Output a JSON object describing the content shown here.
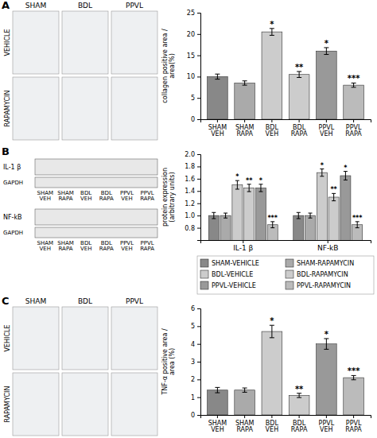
{
  "chart_data": [
    {
      "type": "bar",
      "title": "A",
      "ylabel": "collagen positive area /\narea(%)",
      "categories": [
        "SHAM\nVEH",
        "SHAM\nRAPA",
        "BDL\nVEH",
        "BDL\nRAPA",
        "PPVL\nVEH",
        "PPVL\nRAPA"
      ],
      "values": [
        10.0,
        8.5,
        20.5,
        10.5,
        16.0,
        8.0
      ],
      "errors": [
        0.6,
        0.5,
        0.8,
        0.7,
        0.8,
        0.5
      ],
      "significance": [
        null,
        null,
        "*",
        "**",
        "*",
        "***"
      ],
      "colors": [
        "#888888",
        "#aaaaaa",
        "#cccccc",
        "#cccccc",
        "#999999",
        "#bbbbbb"
      ],
      "ylim": [
        0,
        25
      ],
      "yticks": [
        0,
        5,
        10,
        15,
        20,
        25
      ],
      "annotations": {
        "columns": [
          "SHAM",
          "BDL",
          "PPVL"
        ],
        "rows": [
          "VEHICLE",
          "RAPAMYCIN"
        ]
      }
    },
    {
      "type": "bar",
      "title": "B",
      "ylabel": "protein expression\n(arbitrary units)",
      "categories": [
        "IL-1 β",
        "NF-kB"
      ],
      "series": [
        {
          "name": "SHAM-VEHICLE",
          "color": "#888888",
          "values": [
            1.0,
            1.0
          ],
          "errors": [
            0.05,
            0.05
          ],
          "significance": [
            null,
            null
          ]
        },
        {
          "name": "SHAM-RAPAMYCIN",
          "color": "#aaaaaa",
          "values": [
            1.0,
            1.0
          ],
          "errors": [
            0.04,
            0.04
          ],
          "significance": [
            null,
            null
          ]
        },
        {
          "name": "BDL-VEHICLE",
          "color": "#cccccc",
          "values": [
            1.5,
            1.7
          ],
          "errors": [
            0.07,
            0.06
          ],
          "significance": [
            "*",
            "*"
          ]
        },
        {
          "name": "BDL-RAPAMYCIN",
          "color": "#cccccc",
          "values": [
            1.45,
            1.3
          ],
          "errors": [
            0.06,
            0.06
          ],
          "significance": [
            "**",
            "**"
          ]
        },
        {
          "name": "PPVL-VEHICLE",
          "color": "#999999",
          "values": [
            1.45,
            1.65
          ],
          "errors": [
            0.06,
            0.07
          ],
          "significance": [
            "*",
            "*"
          ]
        },
        {
          "name": "PPVL-RAPAMYCIN",
          "color": "#bbbbbb",
          "values": [
            0.85,
            0.85
          ],
          "errors": [
            0.05,
            0.05
          ],
          "significance": [
            "***",
            "***"
          ]
        }
      ],
      "ylim": [
        0.6,
        2.0
      ],
      "yticks": [
        0.8,
        {
          "value": 1.0,
          "label": "1.0"
        },
        1.2,
        1.4,
        1.6,
        1.8,
        {
          "value": 2.0,
          "label": "2.0"
        }
      ],
      "legend": "bottom",
      "annotations": {
        "blots": [
          [
            "IL-1 β",
            "GAPDH"
          ],
          [
            "NF-kB",
            "GAPDH"
          ]
        ],
        "lanes": [
          "SHAM\nVEH",
          "SHAM\nRAPA",
          "BDL\nVEH",
          "BDL\nRAPA",
          "PPVL\nVEH",
          "PPVL\nRAPA"
        ]
      }
    },
    {
      "type": "bar",
      "title": "C",
      "ylabel": "TNF-α positive area /\narea (%)",
      "categories": [
        "SHAM\nVEH",
        "SHAM\nRAPA",
        "BDL\nVEH",
        "BDL\nRAPA",
        "PPVL\nVEH",
        "PPVL\nRAPA"
      ],
      "values": [
        1.4,
        1.4,
        4.7,
        1.1,
        4.0,
        2.1
      ],
      "errors": [
        0.15,
        0.12,
        0.35,
        0.12,
        0.3,
        0.12
      ],
      "significance": [
        null,
        null,
        "*",
        "**",
        "*",
        "***"
      ],
      "colors": [
        "#888888",
        "#aaaaaa",
        "#cccccc",
        "#cccccc",
        "#999999",
        "#bbbbbb"
      ],
      "ylim": [
        0,
        6
      ],
      "yticks": [
        0,
        1,
        2,
        3,
        4,
        5,
        6
      ],
      "annotations": {
        "columns": [
          "SHAM",
          "BDL",
          "PPVL"
        ],
        "rows": [
          "VEHICLE",
          "RAPAMYCIN"
        ]
      }
    }
  ]
}
